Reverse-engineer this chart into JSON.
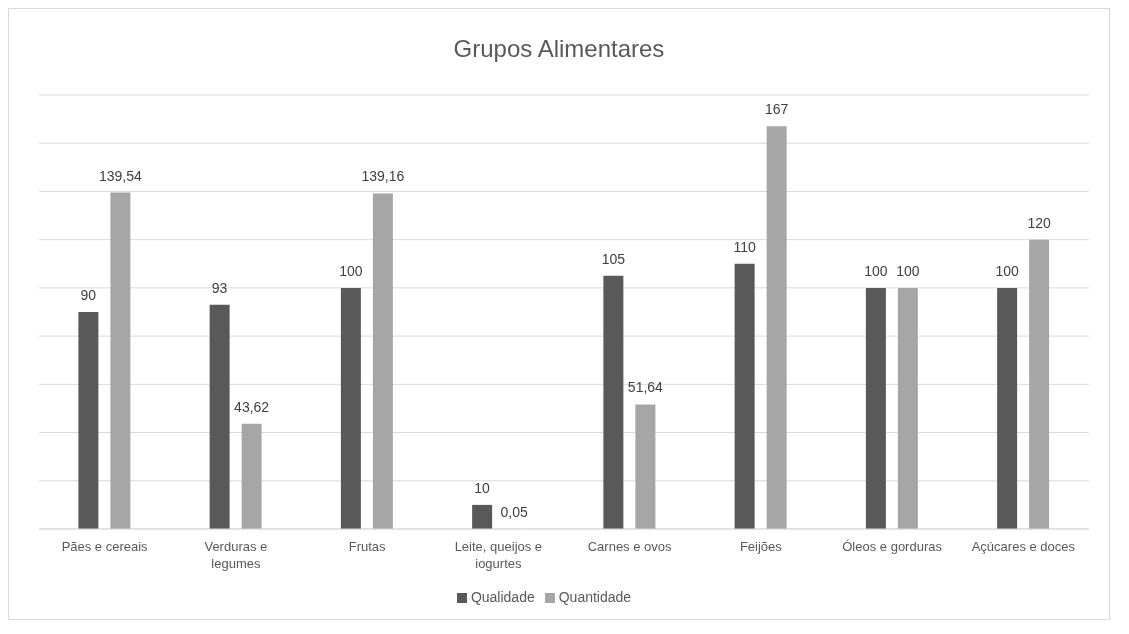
{
  "chart_data": {
    "type": "bar",
    "title": "Grupos Alimentares",
    "categories": [
      "Pães e cereais",
      "Verduras e legumes",
      "Frutas",
      "Leite, queijos e iogurtes",
      "Carnes e ovos",
      "Feijões",
      "Óleos e gorduras",
      "Açúcares e doces"
    ],
    "series": [
      {
        "name": "Qualidade",
        "color": "#595959",
        "values": [
          90,
          93,
          100,
          10,
          105,
          110,
          100,
          100
        ],
        "value_labels": [
          "90",
          "93",
          "100",
          "10",
          "105",
          "110",
          "100",
          "100"
        ]
      },
      {
        "name": "Quantidade",
        "color": "#a6a6a6",
        "values": [
          139.54,
          43.62,
          139.16,
          0.05,
          51.64,
          167,
          100,
          120
        ],
        "value_labels": [
          "139,54",
          "43,62",
          "139,16",
          "0,05",
          "51,64",
          "167",
          "100",
          "120"
        ]
      }
    ],
    "ylim": [
      0,
      180
    ],
    "yticks": [
      {
        "value": 0,
        "label": null
      },
      {
        "value": 20,
        "label": null
      },
      {
        "value": 40,
        "label": null
      },
      {
        "value": 60,
        "label": null
      },
      {
        "value": 80,
        "label": null
      },
      {
        "value": 100,
        "label": null
      },
      {
        "value": 120,
        "label": null
      },
      {
        "value": 140,
        "label": null
      },
      {
        "value": 160,
        "label": null
      },
      {
        "value": 180,
        "label": null
      }
    ],
    "grid": "y",
    "legend": "bottom"
  }
}
